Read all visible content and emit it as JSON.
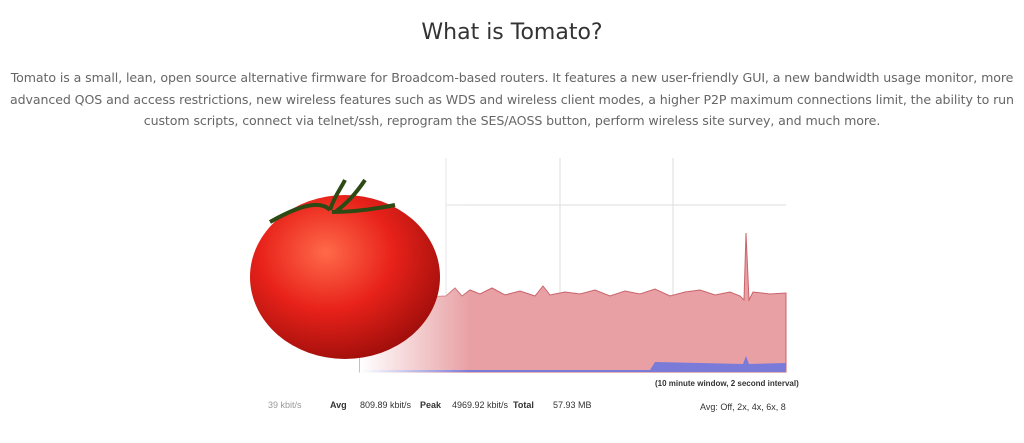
{
  "section": {
    "title": "What is Tomato?",
    "description": "Tomato is a small, lean, open source alternative firmware for Broadcom-based routers. It features a new user-friendly GUI, a new bandwidth usage monitor, more advanced QOS and access restrictions, new wireless features such as WDS and wireless client modes, a higher P2P maximum connections limit, the ability to run custom scripts, connect via telnet/ssh, reprogram the SES/AOSS button, perform wireless site survey, and much more."
  },
  "graph": {
    "caption": "(10 minute window, 2 second interval)",
    "current": "39 kbit/s",
    "avg_label": "Avg",
    "avg": "809.89 kbit/s",
    "peak_label": "Peak",
    "peak": "4969.92 kbit/s",
    "total_label": "Total",
    "total": "57.93 MB",
    "averaging": "Avg: Off, 2x, 4x, 6x, 8"
  }
}
